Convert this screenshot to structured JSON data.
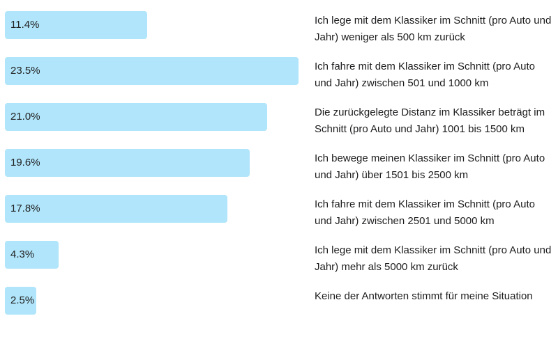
{
  "chart_data": {
    "type": "bar",
    "orientation": "horizontal",
    "bar_color": "#b0e5fb",
    "categories": [
      "Ich lege mit dem Klassiker im Schnitt (pro Auto und Jahr) weniger als 500 km zurück",
      "Ich fahre mit dem Klassiker im Schnitt (pro Auto und Jahr) zwischen 501 und 1000 km",
      "Die zurückgelegte Distanz im Klassiker beträgt im Schnitt (pro Auto und Jahr) 1001 bis 1500 km",
      "Ich bewege meinen Klassiker im Schnitt (pro Auto und Jahr) über 1501 bis 2500 km",
      "Ich fahre mit dem Klassiker im Schnitt (pro Auto und Jahr) zwischen 2501 und 5000 km",
      "Ich lege mit dem Klassiker im Schnitt (pro Auto und Jahr) mehr als 5000 km zurück",
      "Keine der Antworten stimmt für meine Situation"
    ],
    "values": [
      11.4,
      23.5,
      21.0,
      19.6,
      17.8,
      4.3,
      2.5
    ],
    "value_labels": [
      "11.4%",
      "23.5%",
      "21.0%",
      "19.6%",
      "17.8%",
      "4.3%",
      "2.5%"
    ],
    "unit": "%"
  }
}
